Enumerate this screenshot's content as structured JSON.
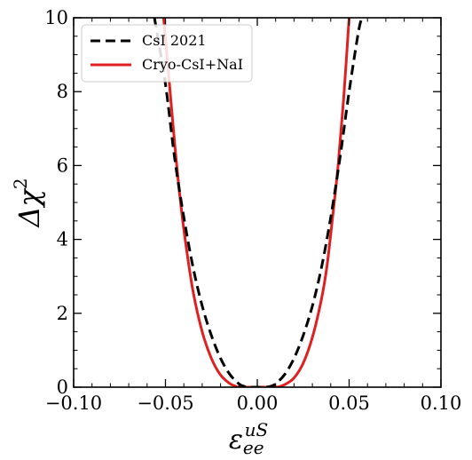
{
  "chart_data": {
    "type": "line",
    "title": "",
    "xlabel": {
      "base": "ε",
      "sub": "ee",
      "sup": "uS"
    },
    "ylabel": {
      "base": "Δχ",
      "sup": "2"
    },
    "xlim": [
      -0.1,
      0.1
    ],
    "ylim": [
      0,
      10
    ],
    "xticks": [
      -0.1,
      -0.05,
      0.0,
      0.05,
      0.1
    ],
    "xtick_labels": [
      "−0.10",
      "−0.05",
      "0.00",
      "0.05",
      "0.10"
    ],
    "yticks": [
      0,
      2,
      4,
      6,
      8,
      10
    ],
    "ytick_labels": [
      "0",
      "2",
      "4",
      "6",
      "8",
      "10"
    ],
    "x_minor_step": 0.01,
    "y_minor_step": 0.5,
    "grid": false,
    "legend_position": "top-left",
    "series": [
      {
        "name": "CsI 2021",
        "color": "#000000",
        "style": "dashed",
        "points": [
          [
            -0.056,
            10.0
          ],
          [
            -0.05,
            8.2
          ],
          [
            -0.045,
            6.2
          ],
          [
            -0.04,
            4.6
          ],
          [
            -0.035,
            3.25
          ],
          [
            -0.03,
            2.2
          ],
          [
            -0.025,
            1.4
          ],
          [
            -0.02,
            0.78
          ],
          [
            -0.015,
            0.35
          ],
          [
            -0.01,
            0.09
          ],
          [
            -0.007,
            0.02
          ],
          [
            -0.004,
            0.0
          ],
          [
            0.0,
            0.0
          ],
          [
            0.004,
            0.0
          ],
          [
            0.007,
            0.02
          ],
          [
            0.01,
            0.09
          ],
          [
            0.015,
            0.35
          ],
          [
            0.02,
            0.78
          ],
          [
            0.025,
            1.4
          ],
          [
            0.03,
            2.2
          ],
          [
            0.035,
            3.25
          ],
          [
            0.04,
            4.6
          ],
          [
            0.045,
            6.2
          ],
          [
            0.05,
            8.0
          ],
          [
            0.055,
            9.6
          ],
          [
            0.057,
            10.0
          ]
        ]
      },
      {
        "name": "Cryo-CsI+NaI",
        "color": "#e02020",
        "style": "solid",
        "points": [
          [
            -0.051,
            10.0
          ],
          [
            -0.048,
            8.3
          ],
          [
            -0.045,
            6.6
          ],
          [
            -0.042,
            5.1
          ],
          [
            -0.039,
            3.9
          ],
          [
            -0.035,
            2.6
          ],
          [
            -0.03,
            1.5
          ],
          [
            -0.025,
            0.78
          ],
          [
            -0.02,
            0.33
          ],
          [
            -0.015,
            0.1
          ],
          [
            -0.012,
            0.03
          ],
          [
            -0.01,
            0.0
          ],
          [
            0.0,
            0.0
          ],
          [
            0.01,
            0.0
          ],
          [
            0.013,
            0.03
          ],
          [
            0.016,
            0.1
          ],
          [
            0.02,
            0.25
          ],
          [
            0.025,
            0.65
          ],
          [
            0.03,
            1.35
          ],
          [
            0.035,
            2.4
          ],
          [
            0.038,
            3.3
          ],
          [
            0.041,
            4.6
          ],
          [
            0.044,
            6.0
          ],
          [
            0.047,
            7.8
          ],
          [
            0.05,
            10.0
          ]
        ]
      }
    ]
  }
}
